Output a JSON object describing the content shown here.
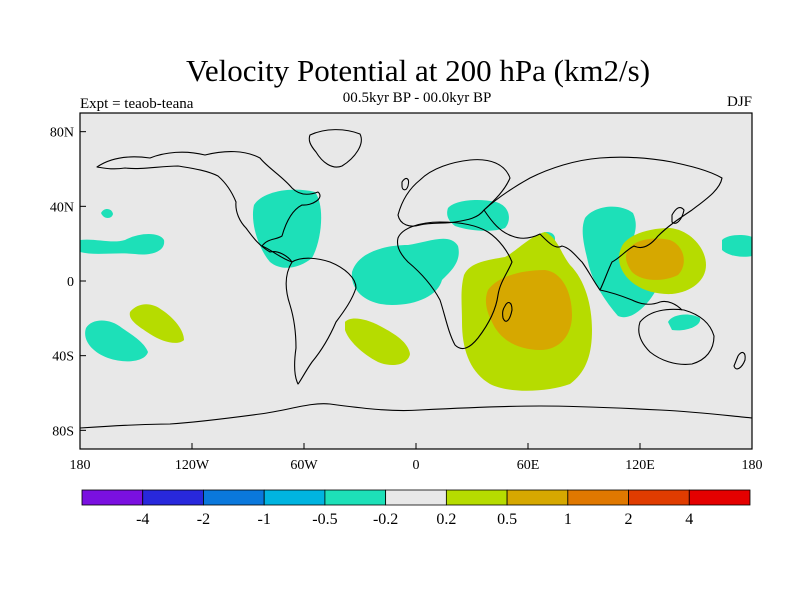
{
  "title": "Velocity Potential at 200 hPa (km2/s)",
  "subtitle": "00.5kyr BP - 00.0kyr BP",
  "left_label": "Expt = teaob-teana",
  "right_label": "DJF",
  "map": {
    "projection": "cylindrical-equidistant",
    "lon_range": [
      -180,
      180
    ],
    "lat_range": [
      -90,
      90
    ],
    "background": "#e8e8e8",
    "lat_ticks": [
      "80N",
      "40N",
      "0",
      "40S",
      "80S"
    ],
    "lon_ticks": [
      "180",
      "120W",
      "60W",
      "0",
      "60E",
      "120E",
      "180"
    ],
    "contour_fill_levels": [
      {
        "range": "-0.5 to -0.2",
        "color": "#1de0b8",
        "regions": [
          "North America / Caribbean",
          "Tropical Atlantic",
          "North Africa / Mediterranean",
          "Western Pacific",
          "Northwest Indian Ocean",
          "South Pacific",
          "Northern Australia"
        ]
      },
      {
        "range": "0.2 to 0.5",
        "color": "#b6dc00",
        "regions": [
          "Southern Indian Ocean",
          "South Atlantic",
          "Maritime Continent",
          "Central South Pacific"
        ]
      },
      {
        "range": "0.5 to 1",
        "color": "#d6a800",
        "regions": [
          "Madagascar / Indian Ocean",
          "Philippines"
        ]
      }
    ]
  },
  "colorbar": {
    "colors": [
      "#7a10e0",
      "#2828dc",
      "#0a78dc",
      "#00b4e0",
      "#1de0b8",
      "#e8e8e8",
      "#b6dc00",
      "#d6a800",
      "#e07800",
      "#e03c00",
      "#e40000"
    ],
    "labels": [
      "-4",
      "-2",
      "-1",
      "-0.5",
      "-0.2",
      "0.2",
      "0.5",
      "1",
      "2",
      "4"
    ]
  }
}
